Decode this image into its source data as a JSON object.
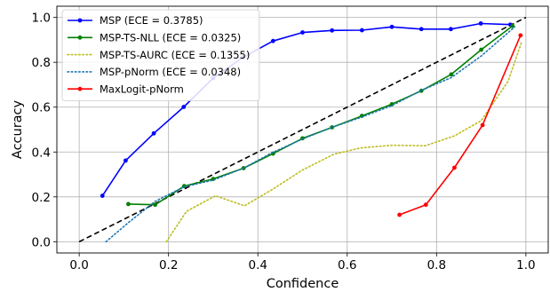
{
  "chart_data": {
    "type": "line",
    "xlabel": "Confidence",
    "ylabel": "Accuracy",
    "xlim": [
      -0.05,
      1.05
    ],
    "ylim": [
      -0.05,
      1.05
    ],
    "xticks": [
      "0.0",
      "0.2",
      "0.4",
      "0.6",
      "0.8",
      "1.0"
    ],
    "yticks": [
      "0.0",
      "0.2",
      "0.4",
      "0.6",
      "0.8",
      "1.0"
    ],
    "grid": true,
    "legend_position": "top-left",
    "diagonal": {
      "x": [
        0,
        1
      ],
      "y": [
        0,
        1
      ],
      "color": "#000000",
      "dash": "dashed"
    },
    "series": [
      {
        "name": "MSP (ECE = 0.3785)",
        "color": "#0000ff",
        "style": "solid",
        "marker": true,
        "x": [
          0.052,
          0.104,
          0.167,
          0.234,
          0.3,
          0.367,
          0.434,
          0.5,
          0.566,
          0.633,
          0.7,
          0.766,
          0.832,
          0.899,
          0.965
        ],
        "y": [
          0.205,
          0.362,
          0.483,
          0.601,
          0.73,
          0.822,
          0.895,
          0.933,
          0.942,
          0.943,
          0.958,
          0.948,
          0.948,
          0.973,
          0.968
        ]
      },
      {
        "name": "MSP-TS-NLL (ECE = 0.0325)",
        "color": "#008000",
        "style": "solid",
        "marker": true,
        "x": [
          0.11,
          0.17,
          0.235,
          0.3,
          0.368,
          0.434,
          0.5,
          0.566,
          0.633,
          0.7,
          0.766,
          0.833,
          0.9,
          0.97
        ],
        "y": [
          0.168,
          0.165,
          0.248,
          0.28,
          0.328,
          0.393,
          0.461,
          0.51,
          0.561,
          0.613,
          0.673,
          0.746,
          0.856,
          0.962
        ]
      },
      {
        "name": "MSP-TS-AURC (ECE = 0.1355)",
        "color": "#bcbd22",
        "style": "dotted",
        "marker": false,
        "x": [
          0.195,
          0.24,
          0.305,
          0.37,
          0.43,
          0.5,
          0.57,
          0.63,
          0.7,
          0.775,
          0.84,
          0.9,
          0.96,
          0.99
        ],
        "y": [
          0.0,
          0.135,
          0.205,
          0.16,
          0.23,
          0.32,
          0.39,
          0.418,
          0.43,
          0.428,
          0.472,
          0.54,
          0.715,
          0.888
        ]
      },
      {
        "name": "MSP-pNorm (ECE = 0.0348)",
        "color": "#1f77b4",
        "style": "dotted",
        "marker": false,
        "x": [
          0.06,
          0.11,
          0.17,
          0.235,
          0.3,
          0.37,
          0.43,
          0.5,
          0.566,
          0.633,
          0.7,
          0.766,
          0.833,
          0.9,
          0.975
        ],
        "y": [
          0.0,
          0.085,
          0.18,
          0.245,
          0.275,
          0.33,
          0.395,
          0.458,
          0.51,
          0.556,
          0.607,
          0.675,
          0.732,
          0.828,
          0.958
        ]
      },
      {
        "name": "MaxLogit-pNorm",
        "color": "#ff0000",
        "style": "solid",
        "marker": true,
        "x": [
          0.717,
          0.776,
          0.84,
          0.903,
          0.988
        ],
        "y": [
          0.12,
          0.165,
          0.33,
          0.52,
          0.92
        ]
      }
    ]
  }
}
